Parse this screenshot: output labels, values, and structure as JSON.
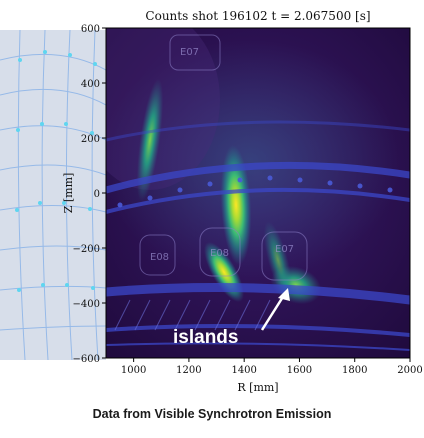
{
  "chart_data": {
    "type": "heatmap",
    "title": "Counts shot 196102 t = 2.067500 [s]",
    "xlabel": "R [mm]",
    "ylabel": "Z [mm]",
    "xlim": [
      900,
      2000
    ],
    "ylim": [
      -600,
      600
    ],
    "xticks": [
      1000,
      1200,
      1400,
      1600,
      1800,
      2000
    ],
    "yticks": [
      600,
      400,
      200,
      0,
      -200,
      -400,
      -600
    ],
    "colormap": "viridis",
    "annotation": {
      "text": "islands",
      "arrow_target": [
        1580,
        -370
      ],
      "text_anchor": [
        1330,
        -530
      ]
    },
    "emission_regions": [
      {
        "r": 1050,
        "z": 200,
        "intensity": 0.55
      },
      {
        "r": 1350,
        "z": 0,
        "intensity": 0.95
      },
      {
        "r": 1290,
        "z": -280,
        "intensity": 0.6
      },
      {
        "r": 1600,
        "z": -340,
        "intensity": 0.75
      }
    ],
    "overlay_labels": [
      "E08",
      "E08",
      "E07",
      "E07"
    ]
  },
  "caption": "Data from Visible Synchrotron Emission",
  "colors": {
    "background": "#2e1153",
    "overlay_grid": "#4a5bd8",
    "grid_nodes": "#7de7ff",
    "wall": "#cfd8e6",
    "annotation": "#ffffff"
  }
}
